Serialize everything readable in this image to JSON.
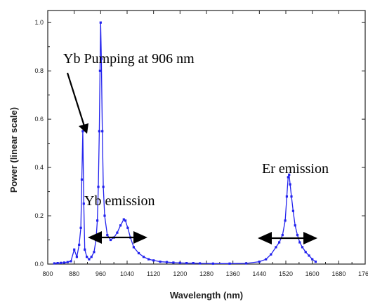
{
  "chart_data": {
    "type": "line",
    "title": "",
    "xlabel": "Wavelength (nm)",
    "ylabel": "Power (linear scale)",
    "xlim": [
      800,
      1760
    ],
    "ylim": [
      0,
      1.05
    ],
    "x_ticks": [
      "800",
      "880",
      "960",
      "1040",
      "1120",
      "1200",
      "1280",
      "1360",
      "1440",
      "1520",
      "1600",
      "1680",
      "1760"
    ],
    "y_ticks": [
      "0.0",
      "0.2",
      "0.4",
      "0.6",
      "0.8",
      "1.0"
    ],
    "grid": false,
    "colors": {
      "series": "#2222ee",
      "axis": "#222222",
      "annotation": "#000000"
    },
    "series": [
      {
        "values": [
          [
            820,
            0.003
          ],
          [
            830,
            0.004
          ],
          [
            840,
            0.005
          ],
          [
            850,
            0.006
          ],
          [
            860,
            0.008
          ],
          [
            870,
            0.012
          ],
          [
            880,
            0.06
          ],
          [
            888,
            0.03
          ],
          [
            895,
            0.08
          ],
          [
            900,
            0.15
          ],
          [
            903,
            0.35
          ],
          [
            906,
            0.55
          ],
          [
            909,
            0.25
          ],
          [
            912,
            0.06
          ],
          [
            918,
            0.03
          ],
          [
            925,
            0.02
          ],
          [
            932,
            0.03
          ],
          [
            940,
            0.05
          ],
          [
            946,
            0.1
          ],
          [
            950,
            0.18
          ],
          [
            953,
            0.32
          ],
          [
            956,
            0.55
          ],
          [
            958,
            0.8
          ],
          [
            960,
            1.0
          ],
          [
            962,
            0.85
          ],
          [
            965,
            0.55
          ],
          [
            968,
            0.32
          ],
          [
            972,
            0.2
          ],
          [
            980,
            0.12
          ],
          [
            990,
            0.1
          ],
          [
            1000,
            0.11
          ],
          [
            1010,
            0.13
          ],
          [
            1020,
            0.16
          ],
          [
            1030,
            0.185
          ],
          [
            1035,
            0.18
          ],
          [
            1042,
            0.15
          ],
          [
            1050,
            0.11
          ],
          [
            1060,
            0.07
          ],
          [
            1075,
            0.045
          ],
          [
            1090,
            0.03
          ],
          [
            1105,
            0.02
          ],
          [
            1120,
            0.015
          ],
          [
            1140,
            0.01
          ],
          [
            1160,
            0.008
          ],
          [
            1180,
            0.006
          ],
          [
            1200,
            0.005
          ],
          [
            1220,
            0.004
          ],
          [
            1240,
            0.004
          ],
          [
            1260,
            0.003
          ],
          [
            1300,
            0.002
          ],
          [
            1350,
            0.002
          ],
          [
            1400,
            0.003
          ],
          [
            1440,
            0.01
          ],
          [
            1460,
            0.02
          ],
          [
            1475,
            0.04
          ],
          [
            1490,
            0.07
          ],
          [
            1500,
            0.09
          ],
          [
            1510,
            0.12
          ],
          [
            1518,
            0.18
          ],
          [
            1523,
            0.28
          ],
          [
            1527,
            0.36
          ],
          [
            1530,
            0.37
          ],
          [
            1533,
            0.33
          ],
          [
            1537,
            0.28
          ],
          [
            1542,
            0.22
          ],
          [
            1548,
            0.16
          ],
          [
            1555,
            0.12
          ],
          [
            1562,
            0.09
          ],
          [
            1570,
            0.07
          ],
          [
            1580,
            0.05
          ],
          [
            1590,
            0.035
          ],
          [
            1600,
            0.02
          ],
          [
            1610,
            0.01
          ]
        ]
      }
    ],
    "annotations": [
      {
        "text": "Yb Pumping at 906 nm"
      },
      {
        "text": "Yb emission"
      },
      {
        "text": "Er emission"
      }
    ]
  }
}
